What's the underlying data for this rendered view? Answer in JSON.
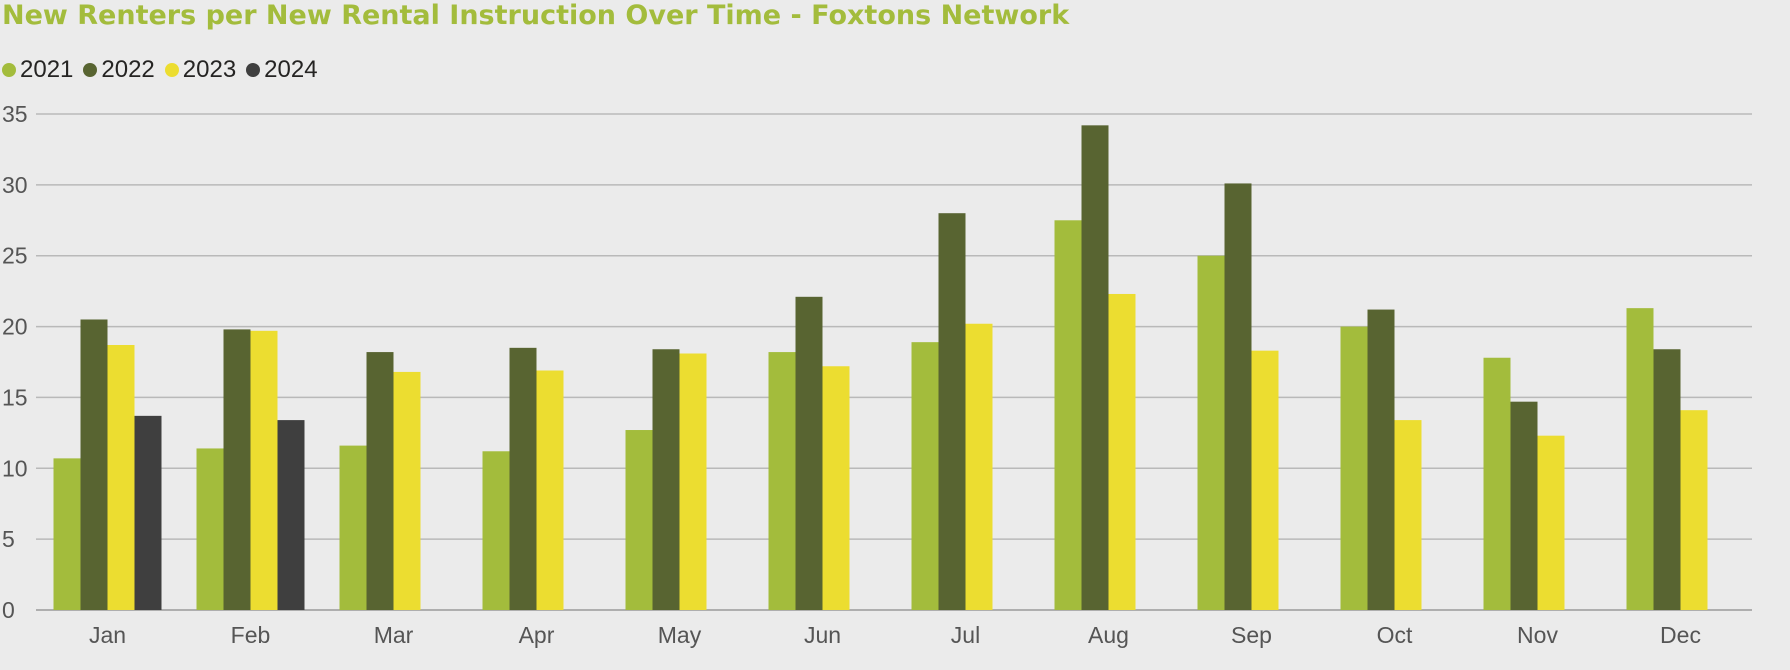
{
  "chart_data": {
    "type": "bar",
    "title": "New Renters per New Rental Instruction Over Time - Foxtons Network",
    "xlabel": "",
    "ylabel": "",
    "ylim": [
      0,
      35
    ],
    "yticks": [
      0,
      5,
      10,
      15,
      20,
      25,
      30,
      35
    ],
    "grid": true,
    "legend_position": "top-left",
    "categories": [
      "Jan",
      "Feb",
      "Mar",
      "Apr",
      "May",
      "Jun",
      "Jul",
      "Aug",
      "Sep",
      "Oct",
      "Nov",
      "Dec"
    ],
    "series": [
      {
        "name": "2021",
        "color": "#a3bc3c",
        "values": [
          10.7,
          11.4,
          11.6,
          11.2,
          12.7,
          18.2,
          18.9,
          27.5,
          25.0,
          20.0,
          17.8,
          21.3
        ]
      },
      {
        "name": "2022",
        "color": "#586431",
        "values": [
          20.5,
          19.8,
          18.2,
          18.5,
          18.4,
          22.1,
          28.0,
          34.2,
          30.1,
          21.2,
          14.7,
          18.4
        ]
      },
      {
        "name": "2023",
        "color": "#ecdd30",
        "values": [
          18.7,
          19.7,
          16.8,
          16.9,
          18.1,
          17.2,
          20.2,
          22.3,
          18.3,
          13.4,
          12.3,
          14.1
        ]
      },
      {
        "name": "2024",
        "color": "#3f3f3f",
        "values": [
          13.7,
          13.4,
          null,
          null,
          null,
          null,
          null,
          null,
          null,
          null,
          null,
          null
        ]
      }
    ]
  }
}
